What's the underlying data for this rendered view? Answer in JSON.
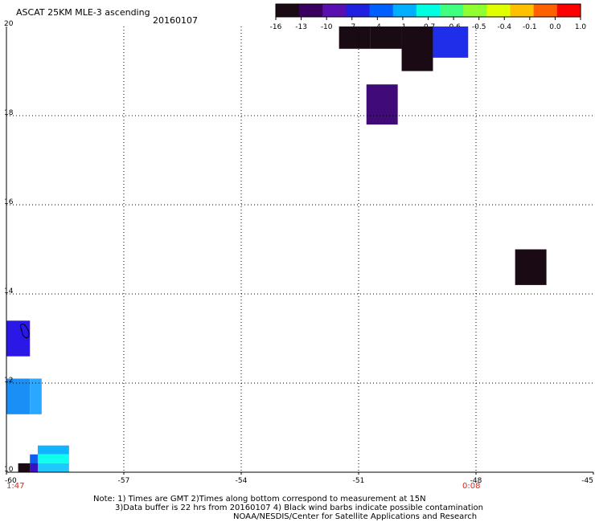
{
  "header": {
    "title": "ASCAT 25KM MLE-3 ascending",
    "date": "20160107"
  },
  "colorbar": {
    "labels": [
      "-16",
      "-13",
      "-10",
      "-7",
      "-4",
      "-1",
      "-0.7",
      "-0.6",
      "-0.5",
      "-0.4",
      "-0.1",
      "0.0",
      "1.0"
    ],
    "colors": [
      "#1a0a14",
      "#3a0060",
      "#5a10b0",
      "#2020e0",
      "#0060ff",
      "#00b0ff",
      "#00ffe0",
      "#40ff80",
      "#90ff30",
      "#e0ff00",
      "#ffc000",
      "#ff6000",
      "#ff0000"
    ]
  },
  "axes": {
    "x_ticks": [
      "-60",
      "-57",
      "-54",
      "-51",
      "-48",
      "-45"
    ],
    "y_ticks": [
      "20",
      "18",
      "16",
      "14",
      "12",
      "10"
    ],
    "lon_range": [
      -60,
      -45
    ],
    "lat_range": [
      10,
      20
    ]
  },
  "timestamps": {
    "left": "1:47",
    "right": "0:08"
  },
  "map_data": {
    "cells": [
      {
        "lon0": -51.5,
        "lon1": -50.7,
        "lat0": 19.5,
        "lat1": 20.0,
        "color": "#1a0a14"
      },
      {
        "lon0": -50.7,
        "lon1": -49.9,
        "lat0": 19.5,
        "lat1": 20.0,
        "color": "#1a0a14"
      },
      {
        "lon0": -49.9,
        "lon1": -49.1,
        "lat0": 19.0,
        "lat1": 20.0,
        "color": "#1a0a14"
      },
      {
        "lon0": -49.1,
        "lon1": -48.2,
        "lat0": 19.3,
        "lat1": 20.0,
        "color": "#1f2ee8"
      },
      {
        "lon0": -50.8,
        "lon1": -50.0,
        "lat0": 17.8,
        "lat1": 18.7,
        "color": "#400a78"
      },
      {
        "lon0": -47.0,
        "lon1": -46.2,
        "lat0": 14.2,
        "lat1": 15.0,
        "color": "#1a0a14"
      },
      {
        "lon0": -60.0,
        "lon1": -59.4,
        "lat0": 12.6,
        "lat1": 13.4,
        "color": "#2b17e6"
      },
      {
        "lon0": -60.0,
        "lon1": -59.4,
        "lat0": 11.3,
        "lat1": 12.1,
        "color": "#1a8ff5"
      },
      {
        "lon0": -59.4,
        "lon1": -59.1,
        "lat0": 11.3,
        "lat1": 12.1,
        "color": "#2aa8ff"
      },
      {
        "lon0": -59.2,
        "lon1": -58.4,
        "lat0": 10.4,
        "lat1": 10.6,
        "color": "#10b4ff"
      },
      {
        "lon0": -59.2,
        "lon1": -58.4,
        "lat0": 10.2,
        "lat1": 10.4,
        "color": "#10ffee"
      },
      {
        "lon0": -59.4,
        "lon1": -59.2,
        "lat0": 10.0,
        "lat1": 10.4,
        "color": "#1060f0"
      },
      {
        "lon0": -59.2,
        "lon1": -58.4,
        "lat0": 10.0,
        "lat1": 10.2,
        "color": "#20c8ff"
      },
      {
        "lon0": -59.7,
        "lon1": -59.4,
        "lat0": 10.0,
        "lat1": 10.2,
        "color": "#1a0a14"
      },
      {
        "lon0": -59.4,
        "lon1": -59.2,
        "lat0": 10.0,
        "lat1": 10.2,
        "color": "#3a10c0"
      }
    ]
  },
  "footer": {
    "line1": "Note: 1) Times are GMT 2)Times along bottom correspond to measurement at 15N",
    "line2": "3)Data buffer is 22 hrs from 20160107 4) Black wind barbs indicate possible contamination",
    "line3": "NOAA/NESDIS/Center for Satellite Applications and Research"
  }
}
